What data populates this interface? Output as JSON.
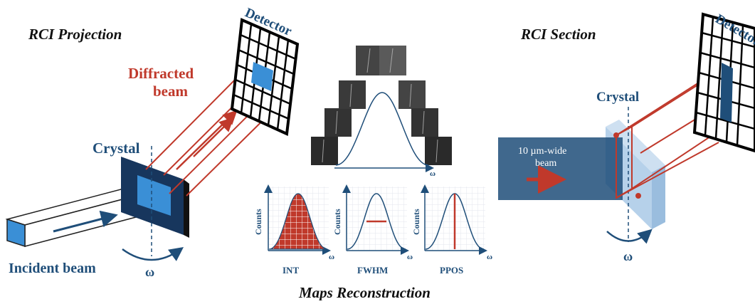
{
  "left_panel": {
    "title": "RCI Projection",
    "detector_label": "Detector",
    "diffracted_label_line1": "Diffracted",
    "diffracted_label_line2": "beam",
    "crystal_label": "Crystal",
    "incident_label": "Incident beam",
    "omega_label": "ω"
  },
  "right_panel": {
    "title": "RCI Section",
    "detector_label": "Detector",
    "crystal_label": "Crystal",
    "beam_label_line1": "10 µm-wide",
    "beam_label_line2": "beam",
    "omega_label": "ω"
  },
  "center_panel": {
    "rocking_axis_label": "ω",
    "maps": [
      {
        "name": "INT",
        "y_label": "Counts",
        "x_label": "ω"
      },
      {
        "name": "FWHM",
        "y_label": "Counts",
        "x_label": "ω"
      },
      {
        "name": "PPOS",
        "y_label": "Counts",
        "x_label": "ω"
      }
    ],
    "footer": "Maps Reconstruction"
  },
  "colors": {
    "navy": "#1f4e79",
    "red": "#c0392b",
    "light_blue": "#3a8fd6",
    "pale_blue": "#a9c9e6"
  }
}
